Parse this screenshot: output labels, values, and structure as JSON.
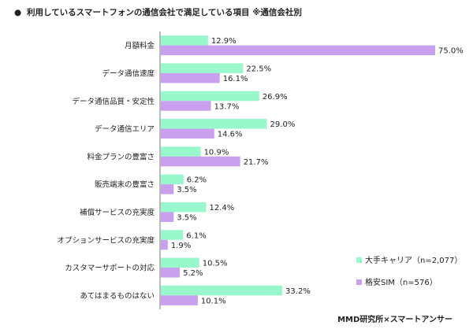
{
  "chart_data": {
    "type": "bar",
    "orientation": "horizontal",
    "title_bullet": "●",
    "title": "利用しているスマートフォンの通信会社で満足している項目 ※通信会社別",
    "categories": [
      "月額料金",
      "データ通信速度",
      "データ通信品質・安定性",
      "データ通信エリア",
      "料金プランの豊富さ",
      "販売端末の豊富さ",
      "補償サービスの充実度",
      "オプションサービスの充実度",
      "カスタマーサポートの対応",
      "あてはまるものはない"
    ],
    "series": [
      {
        "name": "大手キャリア（n=2,077）",
        "color": "#99f7cc",
        "values": [
          12.9,
          22.5,
          26.9,
          29.0,
          10.9,
          6.2,
          12.4,
          6.1,
          10.5,
          33.2
        ],
        "labels": [
          "12.9%",
          "22.5%",
          "26.9%",
          "29.0%",
          "10.9%",
          "6.2%",
          "12.4%",
          "6.1%",
          "10.5%",
          "33.2%"
        ]
      },
      {
        "name": "格安SIM（n=576）",
        "color": "#c9a0ee",
        "values": [
          75.0,
          16.1,
          13.7,
          14.6,
          21.7,
          3.5,
          3.5,
          1.9,
          5.2,
          10.1
        ],
        "labels": [
          "75.0%",
          "16.1%",
          "13.7%",
          "14.6%",
          "21.7%",
          "3.5%",
          "3.5%",
          "1.9%",
          "5.2%",
          "10.1%"
        ]
      }
    ],
    "xlim": [
      0,
      75
    ],
    "grid": false,
    "legend_position": "bottom-right",
    "source": "MMD研究所×スマートアンサー"
  }
}
